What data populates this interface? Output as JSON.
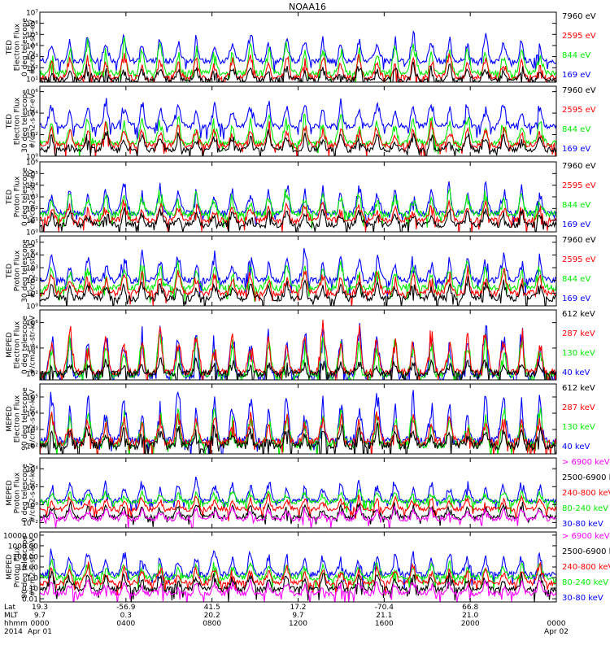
{
  "title": "NOAA16",
  "colors": {
    "black": "#000000",
    "red": "#ff0000",
    "green": "#00ee00",
    "blue": "#0000ff",
    "magenta": "#ff00ff"
  },
  "chart_data": [
    {
      "type": "line",
      "scale": "log",
      "ylabel": [
        "TED",
        "Electron Flux",
        "0 deg telescope",
        "#/cm2-s-str-eV"
      ],
      "yticks": [
        {
          "v": 1,
          "t": "10¹"
        },
        {
          "v": 2,
          "t": "10²"
        },
        {
          "v": 3,
          "t": "10³"
        },
        {
          "v": 4,
          "t": "10⁴"
        },
        {
          "v": 5,
          "t": "10⁵"
        },
        {
          "v": 6,
          "t": "10⁶"
        },
        {
          "v": 7,
          "t": "10⁷"
        }
      ],
      "ylim": [
        0.7,
        7
      ],
      "series": [
        {
          "name": "7960 eV",
          "color": "black",
          "base": 0.9,
          "peak": 2.2
        },
        {
          "name": "2595 eV",
          "color": "red",
          "base": 1.1,
          "peak": 3.2
        },
        {
          "name": "844 eV",
          "color": "green",
          "base": 1.5,
          "peak": 4.5
        },
        {
          "name": "169 eV",
          "color": "blue",
          "base": 2.6,
          "peak": 5.0
        }
      ]
    },
    {
      "type": "line",
      "scale": "log",
      "ylabel": [
        "TED",
        "Electron Flux",
        "30 deg telescope",
        "#/cm2-s-str-eV"
      ],
      "yticks": [
        {
          "v": 0,
          "t": "10⁰"
        },
        {
          "v": 2,
          "t": "10²"
        },
        {
          "v": 4,
          "t": "10⁴"
        },
        {
          "v": 6,
          "t": "10⁶"
        }
      ],
      "ylim": [
        0,
        6.5
      ],
      "series": [
        {
          "name": "7960 eV",
          "color": "black",
          "base": 0.6,
          "peak": 2.2
        },
        {
          "name": "2595 eV",
          "color": "red",
          "base": 1.0,
          "peak": 3.0
        },
        {
          "name": "844 eV",
          "color": "green",
          "base": 1.2,
          "peak": 4.0
        },
        {
          "name": "169 eV",
          "color": "blue",
          "base": 2.8,
          "peak": 5.2
        }
      ]
    },
    {
      "type": "line",
      "scale": "log",
      "ylabel": [
        "TED",
        "Proton Flux",
        "0 deg telescope",
        "#/cm2-s-str-eV"
      ],
      "yticks": [
        {
          "v": 0,
          "t": "10⁰"
        },
        {
          "v": 1,
          "t": "10¹"
        },
        {
          "v": 2,
          "t": "10²"
        },
        {
          "v": 3,
          "t": "10³"
        },
        {
          "v": 4,
          "t": "10⁴"
        },
        {
          "v": 5,
          "t": "10⁵"
        },
        {
          "v": 6,
          "t": "10⁶"
        }
      ],
      "ylim": [
        0,
        6
      ],
      "series": [
        {
          "name": "7960 eV",
          "color": "black",
          "base": 0.6,
          "peak": 2.0
        },
        {
          "name": "2595 eV",
          "color": "red",
          "base": 1.0,
          "peak": 2.6
        },
        {
          "name": "844 eV",
          "color": "green",
          "base": 1.5,
          "peak": 3.6
        },
        {
          "name": "169 eV",
          "color": "blue",
          "base": 1.6,
          "peak": 4.2
        }
      ]
    },
    {
      "type": "line",
      "scale": "log",
      "ylabel": [
        "TED",
        "Proton Flux",
        "30 deg telescope",
        "#/cm2-s-str-eV"
      ],
      "yticks": [
        {
          "v": 0,
          "t": "10⁰"
        },
        {
          "v": 1,
          "t": "10¹"
        },
        {
          "v": 2,
          "t": "10²"
        },
        {
          "v": 3,
          "t": "10³"
        },
        {
          "v": 4,
          "t": "10⁴"
        },
        {
          "v": 5,
          "t": "10⁵"
        }
      ],
      "ylim": [
        0,
        5.5
      ],
      "series": [
        {
          "name": "7960 eV",
          "color": "black",
          "base": 0.6,
          "peak": 2.0
        },
        {
          "name": "2595 eV",
          "color": "red",
          "base": 1.0,
          "peak": 2.8
        },
        {
          "name": "844 eV",
          "color": "green",
          "base": 1.4,
          "peak": 3.5
        },
        {
          "name": "169 eV",
          "color": "blue",
          "base": 2.0,
          "peak": 4.2
        }
      ]
    },
    {
      "type": "line",
      "scale": "log",
      "ylabel": [
        "MEPED",
        "Electron Flux",
        "0 deg telescope",
        "#/cm2-s-str-keV"
      ],
      "yticks": [
        {
          "v": 2,
          "t": "10²"
        },
        {
          "v": 4,
          "t": "10⁴"
        },
        {
          "v": 6,
          "t": "10⁶"
        }
      ],
      "ylim": [
        1.5,
        7
      ],
      "series": [
        {
          "name": "612 keV",
          "color": "black",
          "base": 2.0,
          "peak": 3.0
        },
        {
          "name": "287 keV",
          "color": "red",
          "base": 2.1,
          "peak": 5.8
        },
        {
          "name": "130 keV",
          "color": "green",
          "base": 1.9,
          "peak": 5.0
        },
        {
          "name": "40 keV",
          "color": "blue",
          "base": 1.8,
          "peak": 6.0
        }
      ]
    },
    {
      "type": "line",
      "scale": "log",
      "ylabel": [
        "MEPED",
        "Electron Flux",
        "90 deg telescope",
        "#/cm2-s-str-keV"
      ],
      "yticks": [
        {
          "v": 2,
          "t": "10²"
        },
        {
          "v": 3,
          "t": "10³"
        },
        {
          "v": 4,
          "t": "10⁴"
        },
        {
          "v": 5,
          "t": "10⁵"
        }
      ],
      "ylim": [
        1.5,
        5.8
      ],
      "series": [
        {
          "name": "612 keV",
          "color": "black",
          "base": 2.0,
          "peak": 3.2
        },
        {
          "name": "287 keV",
          "color": "red",
          "base": 2.2,
          "peak": 4.0
        },
        {
          "name": "130 keV",
          "color": "green",
          "base": 2.1,
          "peak": 4.3
        },
        {
          "name": "40 keV",
          "color": "blue",
          "base": 2.3,
          "peak": 5.4
        }
      ]
    },
    {
      "type": "line",
      "scale": "log",
      "ylabel": [
        "MEPED",
        "Proton Flux",
        "0 deg telescope",
        "#/cm2-s-str-keV"
      ],
      "yticks": [
        {
          "v": -2,
          "t": "10⁻²"
        },
        {
          "v": 0,
          "t": "10⁰"
        },
        {
          "v": 2,
          "t": "10²"
        },
        {
          "v": 4,
          "t": "10⁴"
        }
      ],
      "ylim": [
        -2.6,
        5.2
      ],
      "series": [
        {
          "name": "> 6900 keV",
          "color": "magenta",
          "base": -1.6,
          "peak": -0.3
        },
        {
          "name": "2500-6900 keV",
          "color": "black",
          "base": -1.4,
          "peak": 0.2
        },
        {
          "name": "240-800 keV",
          "color": "red",
          "base": -0.5,
          "peak": 1.0
        },
        {
          "name": "80-240 keV",
          "color": "green",
          "base": 0.3,
          "peak": 1.6
        },
        {
          "name": "30-80 keV",
          "color": "blue",
          "base": 0.4,
          "peak": 2.8
        }
      ]
    },
    {
      "type": "line",
      "scale": "log",
      "ylabel": [
        "MEPED",
        "Proton Flux",
        "90 deg telescope",
        "#/cm2-s-str-keV"
      ],
      "yticks": [
        {
          "v": -2,
          "t": "0.01"
        },
        {
          "v": -1,
          "t": "0.10"
        },
        {
          "v": 0,
          "t": "1.0"
        },
        {
          "v": 1,
          "t": "10.00"
        },
        {
          "v": 2,
          "t": "100.00"
        },
        {
          "v": 3,
          "t": "1000.00"
        },
        {
          "v": 4,
          "t": "10000.00"
        }
      ],
      "ylim": [
        -2.3,
        4.3
      ],
      "series": [
        {
          "name": "> 6900 keV",
          "color": "magenta",
          "base": -1.5,
          "peak": -0.3
        },
        {
          "name": "2500-6900 keV",
          "color": "black",
          "base": -1.1,
          "peak": 0.4
        },
        {
          "name": "240-800 keV",
          "color": "red",
          "base": -0.5,
          "peak": 1.2
        },
        {
          "name": "80-240 keV",
          "color": "green",
          "base": 0.0,
          "peak": 1.5
        },
        {
          "name": "30-80 keV",
          "color": "blue",
          "base": 0.3,
          "peak": 2.6
        }
      ]
    }
  ],
  "xaxis": {
    "row_labels": [
      "Lat",
      "MLT",
      "hhmm",
      "2014"
    ],
    "ticks": [
      {
        "hour": 0,
        "lat": "19.3",
        "mlt": "9.7",
        "hhmm": "0000",
        "date": "Apr 01"
      },
      {
        "hour": 4,
        "lat": "-56.9",
        "mlt": "0.3",
        "hhmm": "0400",
        "date": ""
      },
      {
        "hour": 8,
        "lat": "41.5",
        "mlt": "20.2",
        "hhmm": "0800",
        "date": ""
      },
      {
        "hour": 12,
        "lat": "17.2",
        "mlt": "9.7",
        "hhmm": "1200",
        "date": ""
      },
      {
        "hour": 16,
        "lat": "-70.4",
        "mlt": "21.1",
        "hhmm": "1600",
        "date": ""
      },
      {
        "hour": 20,
        "lat": "66.8",
        "mlt": "21.0",
        "hhmm": "2000",
        "date": ""
      },
      {
        "hour": 24,
        "lat": "",
        "mlt": "",
        "hhmm": "0000",
        "date": "Apr 02"
      }
    ],
    "xlim": [
      0,
      24
    ]
  }
}
